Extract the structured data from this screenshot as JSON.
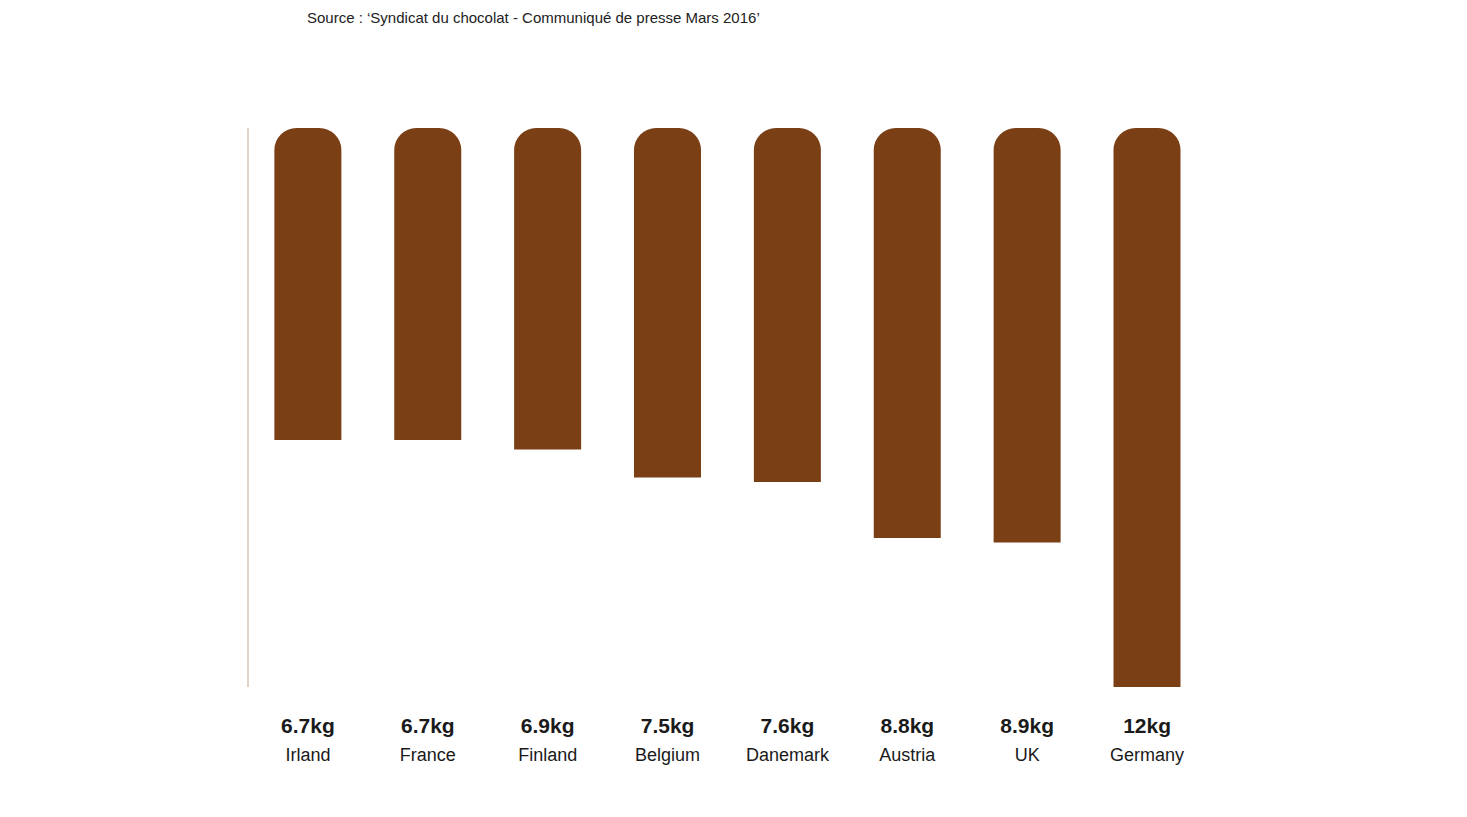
{
  "chart_data": {
    "type": "bar",
    "subtitle": "Source : ‘Syndicat du chocolat - Communiqué de presse Mars 2016’",
    "categories": [
      "Irland",
      "France",
      "Finland",
      "Belgium",
      "Danemark",
      "Austria",
      "UK",
      "Germany"
    ],
    "values": [
      6.7,
      6.7,
      6.9,
      7.5,
      7.6,
      8.8,
      8.9,
      12
    ],
    "value_labels": [
      "6.7kg",
      "6.7kg",
      "6.9kg",
      "7.5kg",
      "7.6kg",
      "8.8kg",
      "8.9kg",
      "12kg"
    ],
    "color": "#7b3f16",
    "ylim": [
      0,
      12
    ],
    "data_labels": true,
    "tick_labels": "x"
  }
}
